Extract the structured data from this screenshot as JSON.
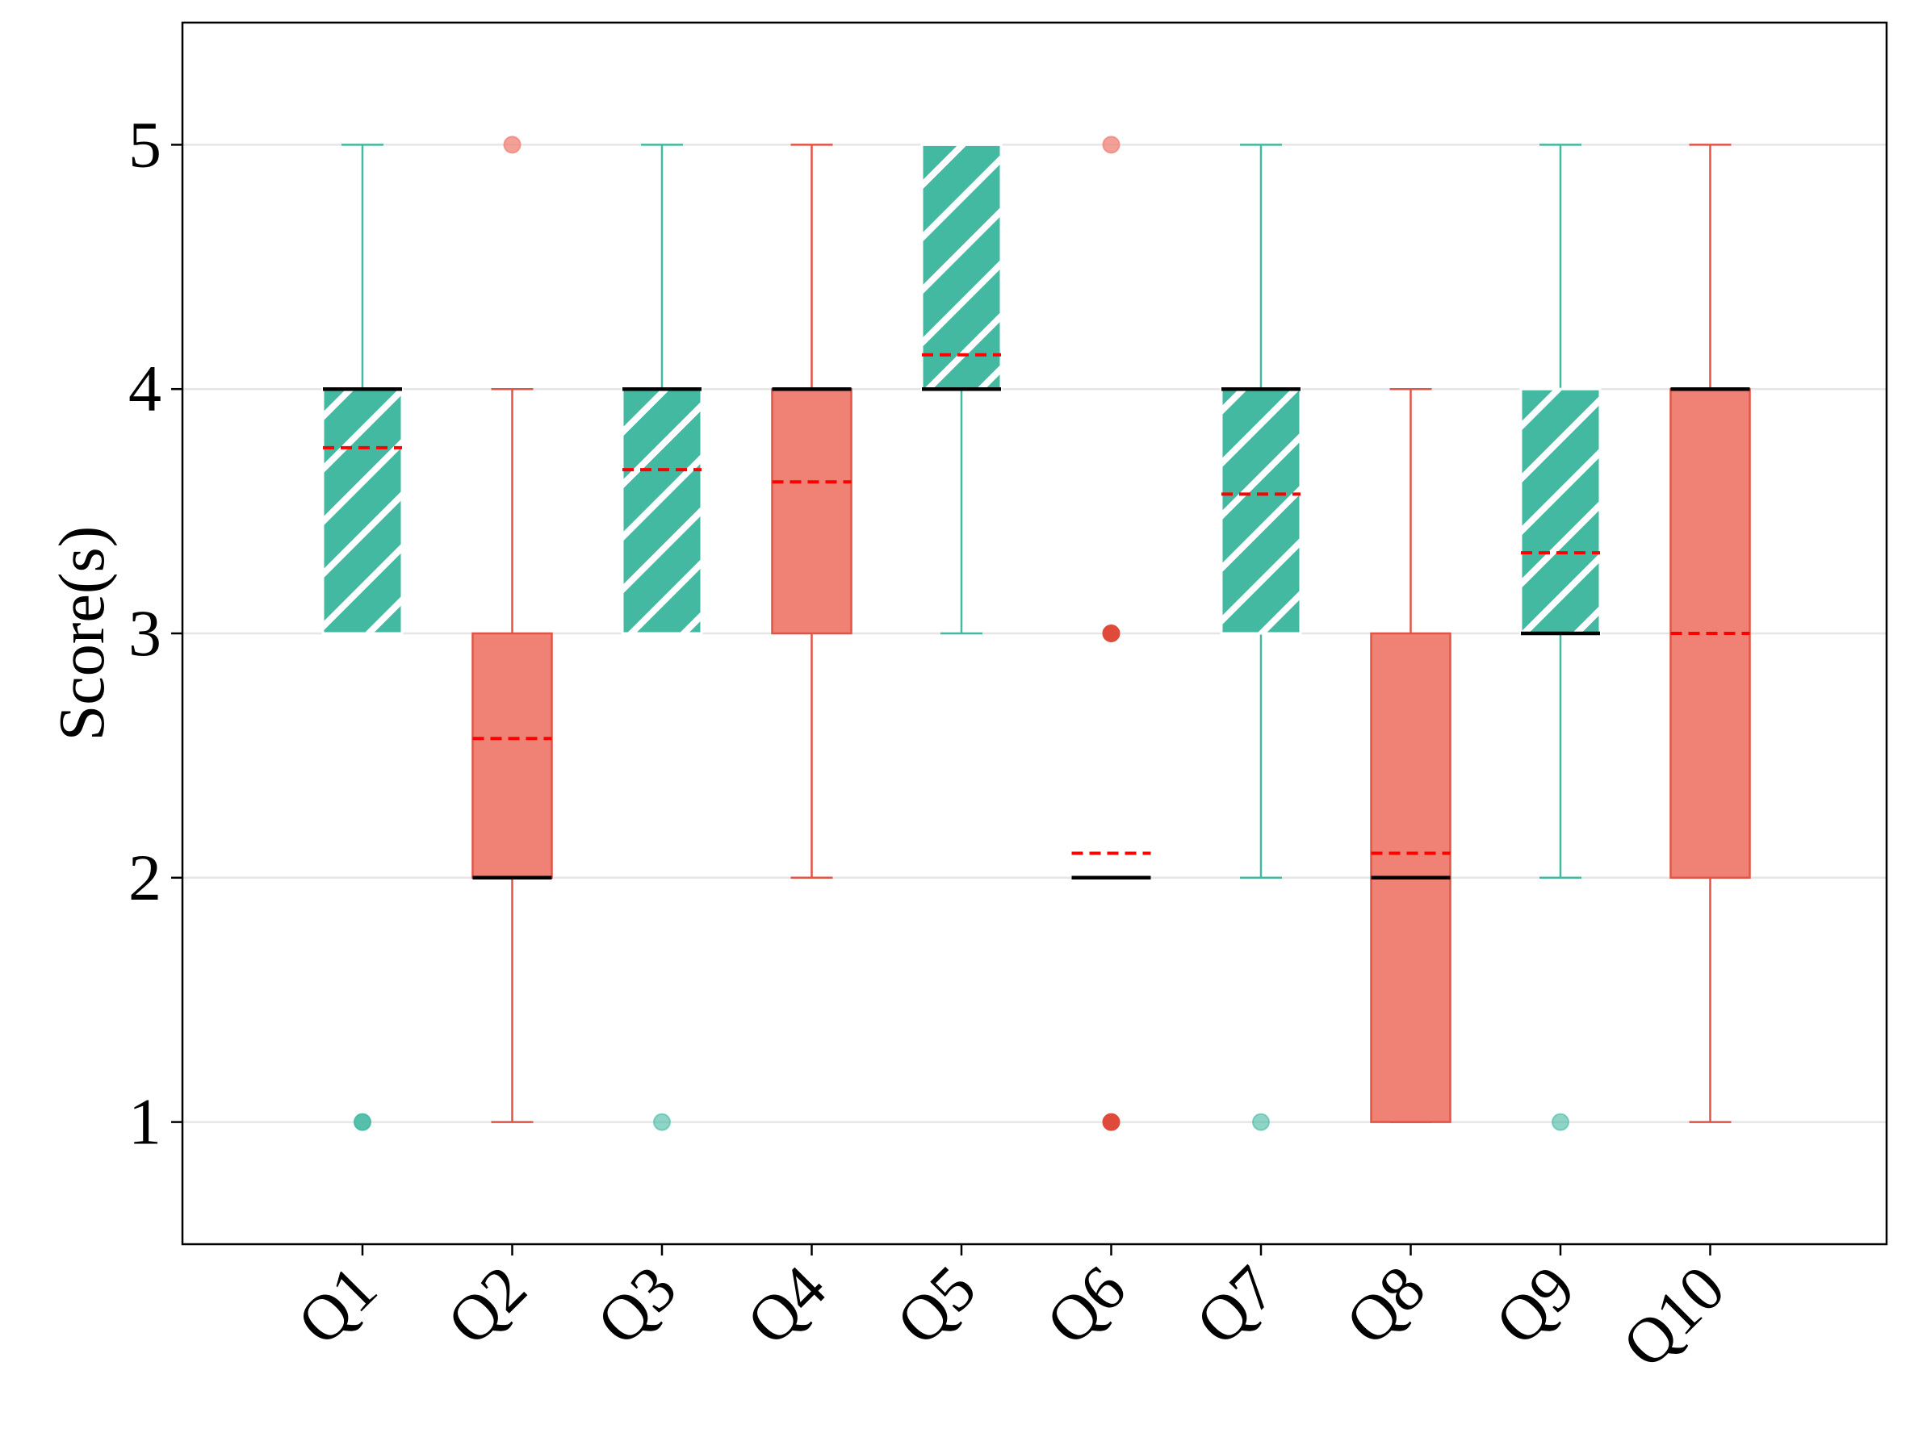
{
  "chart_data": {
    "type": "boxplot",
    "ylabel": "Score(s)",
    "xlabel": "",
    "ylim": [
      0.5,
      5.5
    ],
    "yticks": [
      1,
      2,
      3,
      4,
      5
    ],
    "grid": "horizontal",
    "categories": [
      "Q1",
      "Q2",
      "Q3",
      "Q4",
      "Q5",
      "Q6",
      "Q7",
      "Q8",
      "Q9",
      "Q10"
    ],
    "colors": {
      "green": "#44b9a2",
      "red": "#ef8175",
      "red_edge": "#e05547",
      "mean_line": "#ff0000",
      "median_line": "#000000"
    },
    "boxes": [
      {
        "category": "Q1",
        "style": "green-hatched",
        "q1": 3,
        "median": 4,
        "q3": 4,
        "whislo": 3,
        "whishi": 5,
        "mean": 3.76,
        "fliers": [
          1
        ]
      },
      {
        "category": "Q2",
        "style": "red",
        "q1": 2,
        "median": 2,
        "q3": 3,
        "whislo": 1,
        "whishi": 4,
        "mean": 2.57,
        "fliers": [
          5
        ]
      },
      {
        "category": "Q3",
        "style": "green-hatched",
        "q1": 3,
        "median": 4,
        "q3": 4,
        "whislo": 3,
        "whishi": 5,
        "mean": 3.67,
        "fliers": [
          1
        ]
      },
      {
        "category": "Q4",
        "style": "red",
        "q1": 3,
        "median": 4,
        "q3": 4,
        "whislo": 2,
        "whishi": 5,
        "mean": 3.62,
        "fliers": []
      },
      {
        "category": "Q5",
        "style": "green-hatched",
        "q1": 4,
        "median": 4,
        "q3": 5,
        "whislo": 3,
        "whishi": 5,
        "mean": 4.14,
        "fliers": []
      },
      {
        "category": "Q6",
        "style": "red",
        "q1": 2,
        "median": 2,
        "q3": 2,
        "whislo": 2,
        "whishi": 2,
        "mean": 2.1,
        "fliers": [
          5,
          3,
          1
        ]
      },
      {
        "category": "Q7",
        "style": "green-hatched",
        "q1": 3,
        "median": 4,
        "q3": 4,
        "whislo": 2,
        "whishi": 5,
        "mean": 3.57,
        "fliers": [
          1
        ]
      },
      {
        "category": "Q8",
        "style": "red",
        "q1": 1,
        "median": 2,
        "q3": 3,
        "whislo": 1,
        "whishi": 4,
        "mean": 2.1,
        "fliers": []
      },
      {
        "category": "Q9",
        "style": "green-hatched",
        "q1": 3,
        "median": 3,
        "q3": 4,
        "whislo": 2,
        "whishi": 5,
        "mean": 3.33,
        "fliers": [
          1
        ]
      },
      {
        "category": "Q10",
        "style": "red",
        "q1": 2,
        "median": 4,
        "q3": 4,
        "whislo": 1,
        "whishi": 5,
        "mean": 3.0,
        "fliers": []
      }
    ]
  }
}
